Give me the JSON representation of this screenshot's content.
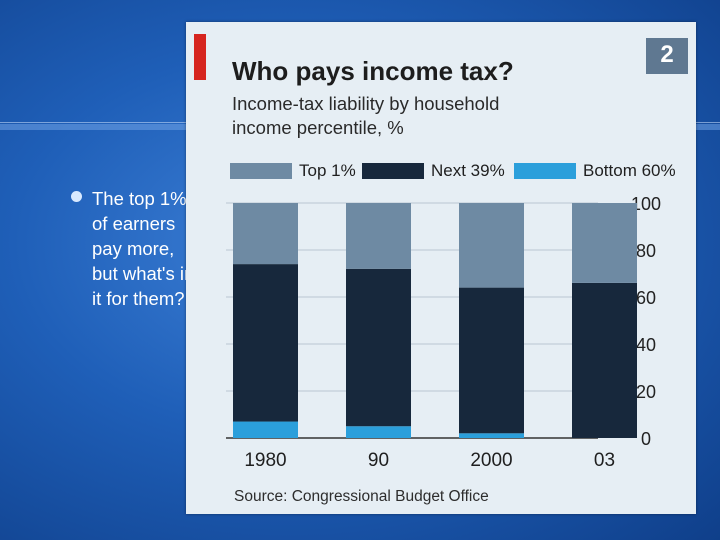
{
  "slide": {
    "bullet_lines": [
      "The top 1%",
      "of earners",
      "pay more,",
      "but what's in",
      "it for them?"
    ]
  },
  "figure": {
    "badge": "2",
    "source": "Source: Congressional Budget Office"
  },
  "chart_data": {
    "type": "bar",
    "stacked": true,
    "title": "Who pays income tax?",
    "subtitle": "Income-tax liability by household income percentile, %",
    "categories": [
      "1980",
      "90",
      "2000",
      "03"
    ],
    "series": [
      {
        "name": "Bottom 60%",
        "color": "#2b9fdb",
        "values": [
          7,
          5,
          2,
          0
        ]
      },
      {
        "name": "Next 39%",
        "color": "#17283c",
        "values": [
          67,
          67,
          62,
          66
        ]
      },
      {
        "name": "Top 1%",
        "color": "#6e8aa3",
        "values": [
          26,
          28,
          36,
          34
        ]
      }
    ],
    "legend_order": [
      "Top 1%",
      "Next 39%",
      "Bottom 60%"
    ],
    "legend_position": "top",
    "ylim": [
      0,
      100
    ],
    "yticks": [
      0,
      20,
      40,
      60,
      80,
      100
    ],
    "y_axis_side": "right",
    "grid": true
  }
}
